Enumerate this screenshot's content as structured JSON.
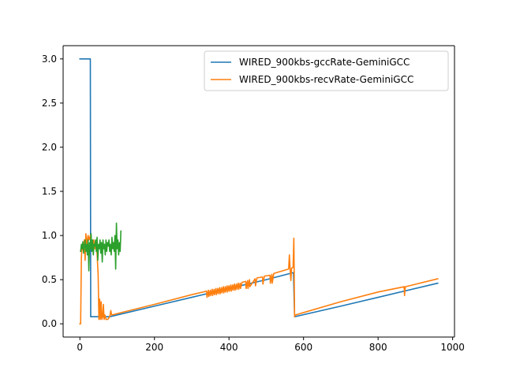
{
  "chart_data": {
    "type": "line",
    "title": "",
    "xlabel": "",
    "ylabel": "",
    "xlim": [
      -45,
      1005
    ],
    "ylim": [
      -0.15,
      3.15
    ],
    "grid": false,
    "legend_position": "upper right",
    "x_ticks": [
      {
        "value": 0,
        "label": "0"
      },
      {
        "value": 200,
        "label": "200"
      },
      {
        "value": 400,
        "label": "400"
      },
      {
        "value": 600,
        "label": "600"
      },
      {
        "value": 800,
        "label": "800"
      },
      {
        "value": 1000,
        "label": "1000"
      }
    ],
    "y_ticks": [
      {
        "value": 0.0,
        "label": "0.0"
      },
      {
        "value": 0.5,
        "label": "0.5"
      },
      {
        "value": 1.0,
        "label": "1.0"
      },
      {
        "value": 1.5,
        "label": "1.5"
      },
      {
        "value": 2.0,
        "label": "2.0"
      },
      {
        "value": 2.5,
        "label": "2.5"
      },
      {
        "value": 3.0,
        "label": "3.0"
      }
    ],
    "series": [
      {
        "name": "WIRED_900kbs-gccRate-GeminiGCC",
        "color": "#1f77b4",
        "in_legend": true,
        "points": [
          [
            0,
            3.0
          ],
          [
            28,
            3.0
          ],
          [
            29,
            0.08
          ],
          [
            80,
            0.08
          ],
          [
            200,
            0.2
          ],
          [
            300,
            0.3
          ],
          [
            400,
            0.4
          ],
          [
            500,
            0.5
          ],
          [
            573,
            0.58
          ],
          [
            576,
            0.08
          ],
          [
            700,
            0.2
          ],
          [
            800,
            0.3
          ],
          [
            960,
            0.46
          ]
        ]
      },
      {
        "name": "WIRED_900kbs-recvRate-GeminiGCC",
        "color": "#ff7f0e",
        "in_legend": true,
        "points": [
          [
            0,
            0.0
          ],
          [
            2,
            0.0
          ],
          [
            4,
            0.75
          ],
          [
            6,
            0.9
          ],
          [
            9,
            0.83
          ],
          [
            12,
            0.95
          ],
          [
            14,
            0.72
          ],
          [
            16,
            1.02
          ],
          [
            19,
            0.9
          ],
          [
            22,
            1.0
          ],
          [
            25,
            0.95
          ],
          [
            28,
            1.0
          ],
          [
            31,
            0.92
          ],
          [
            34,
            0.9
          ],
          [
            37,
            0.95
          ],
          [
            40,
            0.85
          ],
          [
            43,
            0.92
          ],
          [
            46,
            0.8
          ],
          [
            49,
            0.55
          ],
          [
            51,
            0.05
          ],
          [
            53,
            0.28
          ],
          [
            55,
            0.05
          ],
          [
            57,
            0.25
          ],
          [
            59,
            0.05
          ],
          [
            61,
            0.08
          ],
          [
            63,
            0.22
          ],
          [
            65,
            0.05
          ],
          [
            67,
            0.1
          ],
          [
            70,
            0.05
          ],
          [
            75,
            0.05
          ],
          [
            80,
            0.08
          ],
          [
            83,
            0.15
          ],
          [
            85,
            0.1
          ],
          [
            200,
            0.22
          ],
          [
            300,
            0.33
          ],
          [
            340,
            0.37
          ],
          [
            341,
            0.3
          ],
          [
            345,
            0.38
          ],
          [
            346,
            0.31
          ],
          [
            350,
            0.38
          ],
          [
            351,
            0.32
          ],
          [
            355,
            0.39
          ],
          [
            356,
            0.32
          ],
          [
            360,
            0.39
          ],
          [
            361,
            0.33
          ],
          [
            365,
            0.4
          ],
          [
            366,
            0.33
          ],
          [
            370,
            0.4
          ],
          [
            371,
            0.34
          ],
          [
            375,
            0.41
          ],
          [
            376,
            0.34
          ],
          [
            380,
            0.41
          ],
          [
            381,
            0.35
          ],
          [
            385,
            0.42
          ],
          [
            386,
            0.35
          ],
          [
            390,
            0.42
          ],
          [
            391,
            0.36
          ],
          [
            395,
            0.43
          ],
          [
            396,
            0.36
          ],
          [
            400,
            0.43
          ],
          [
            401,
            0.37
          ],
          [
            405,
            0.44
          ],
          [
            406,
            0.37
          ],
          [
            410,
            0.44
          ],
          [
            411,
            0.38
          ],
          [
            415,
            0.45
          ],
          [
            416,
            0.38
          ],
          [
            420,
            0.45
          ],
          [
            421,
            0.39
          ],
          [
            425,
            0.46
          ],
          [
            426,
            0.39
          ],
          [
            430,
            0.46
          ],
          [
            431,
            0.4
          ],
          [
            435,
            0.47
          ],
          [
            445,
            0.48
          ],
          [
            446,
            0.4
          ],
          [
            450,
            0.49
          ],
          [
            451,
            0.4
          ],
          [
            455,
            0.5
          ],
          [
            456,
            0.42
          ],
          [
            470,
            0.51
          ],
          [
            471,
            0.43
          ],
          [
            475,
            0.52
          ],
          [
            490,
            0.53
          ],
          [
            491,
            0.45
          ],
          [
            495,
            0.54
          ],
          [
            510,
            0.55
          ],
          [
            511,
            0.46
          ],
          [
            515,
            0.56
          ],
          [
            516,
            0.46
          ],
          [
            520,
            0.57
          ],
          [
            560,
            0.62
          ],
          [
            562,
            0.78
          ],
          [
            564,
            0.62
          ],
          [
            566,
            0.49
          ],
          [
            568,
            0.63
          ],
          [
            572,
            0.64
          ],
          [
            574,
            0.97
          ],
          [
            576,
            0.08
          ],
          [
            578,
            0.1
          ],
          [
            700,
            0.25
          ],
          [
            800,
            0.36
          ],
          [
            870,
            0.42
          ],
          [
            871,
            0.32
          ],
          [
            873,
            0.42
          ],
          [
            960,
            0.51
          ]
        ]
      },
      {
        "color": "#2ca02c",
        "in_legend": false,
        "points": [
          [
            2,
            0.82
          ],
          [
            4,
            0.9
          ],
          [
            6,
            0.85
          ],
          [
            8,
            0.93
          ],
          [
            10,
            0.8
          ],
          [
            12,
            0.88
          ],
          [
            14,
            0.95
          ],
          [
            16,
            0.82
          ],
          [
            18,
            0.9
          ],
          [
            20,
            0.78
          ],
          [
            22,
            0.95
          ],
          [
            24,
            0.6
          ],
          [
            26,
            0.92
          ],
          [
            28,
            0.85
          ],
          [
            30,
            1.02
          ],
          [
            32,
            0.82
          ],
          [
            34,
            0.95
          ],
          [
            36,
            0.78
          ],
          [
            38,
            0.9
          ],
          [
            40,
            0.88
          ],
          [
            42,
            0.95
          ],
          [
            44,
            0.82
          ],
          [
            46,
            0.98
          ],
          [
            48,
            0.72
          ],
          [
            50,
            0.9
          ],
          [
            52,
            0.85
          ],
          [
            54,
            0.95
          ],
          [
            56,
            0.8
          ],
          [
            58,
            0.92
          ],
          [
            60,
            0.7
          ],
          [
            62,
            0.95
          ],
          [
            64,
            0.85
          ],
          [
            66,
            0.9
          ],
          [
            68,
            0.78
          ],
          [
            70,
            0.95
          ],
          [
            72,
            0.82
          ],
          [
            74,
            0.92
          ],
          [
            76,
            0.88
          ],
          [
            78,
            0.95
          ],
          [
            80,
            0.82
          ],
          [
            82,
            0.9
          ],
          [
            84,
            0.78
          ],
          [
            86,
            0.98
          ],
          [
            88,
            0.85
          ],
          [
            90,
            0.92
          ],
          [
            92,
            0.82
          ],
          [
            94,
            1.0
          ],
          [
            96,
            0.62
          ],
          [
            98,
            1.14
          ],
          [
            100,
            0.85
          ],
          [
            102,
            0.95
          ],
          [
            104,
            0.78
          ],
          [
            106,
            0.92
          ],
          [
            108,
            0.82
          ],
          [
            110,
            1.05
          ]
        ]
      }
    ]
  }
}
